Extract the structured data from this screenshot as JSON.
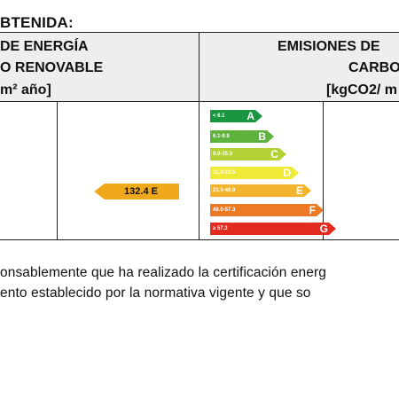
{
  "section_title": "BTENIDA:",
  "header": {
    "left_line1": "DE ENERGÍA",
    "left_line2": "O RENOVABLE",
    "left_unit": "m² año]",
    "right_line1": "EMISIONES DE",
    "right_line2": "CARBO",
    "right_unit": "[kgCO2/ m"
  },
  "left_indicator": {
    "value": "132.4 E",
    "color": "#f0a81c"
  },
  "rating_scale": [
    {
      "range": "< 6.1",
      "letter": "A",
      "color": "#1a9641"
    },
    {
      "range": "6.1-9.9",
      "letter": "B",
      "color": "#5cb23a"
    },
    {
      "range": "9.9-15.3",
      "letter": "C",
      "color": "#b2d235"
    },
    {
      "range": "15.3-23.5",
      "letter": "D",
      "color": "#eeea35"
    },
    {
      "range": "23.5-48.0",
      "letter": "E",
      "color": "#f3b42d"
    },
    {
      "range": "48.0-57.3",
      "letter": "F",
      "color": "#ec7a25"
    },
    {
      "range": "≥ 57.3",
      "letter": "G",
      "color": "#e42b20"
    }
  ],
  "paragraph": {
    "line1": "onsablemente que ha realizado la certificación energ",
    "line2": "ento establecido por la normativa vigente y que so"
  }
}
